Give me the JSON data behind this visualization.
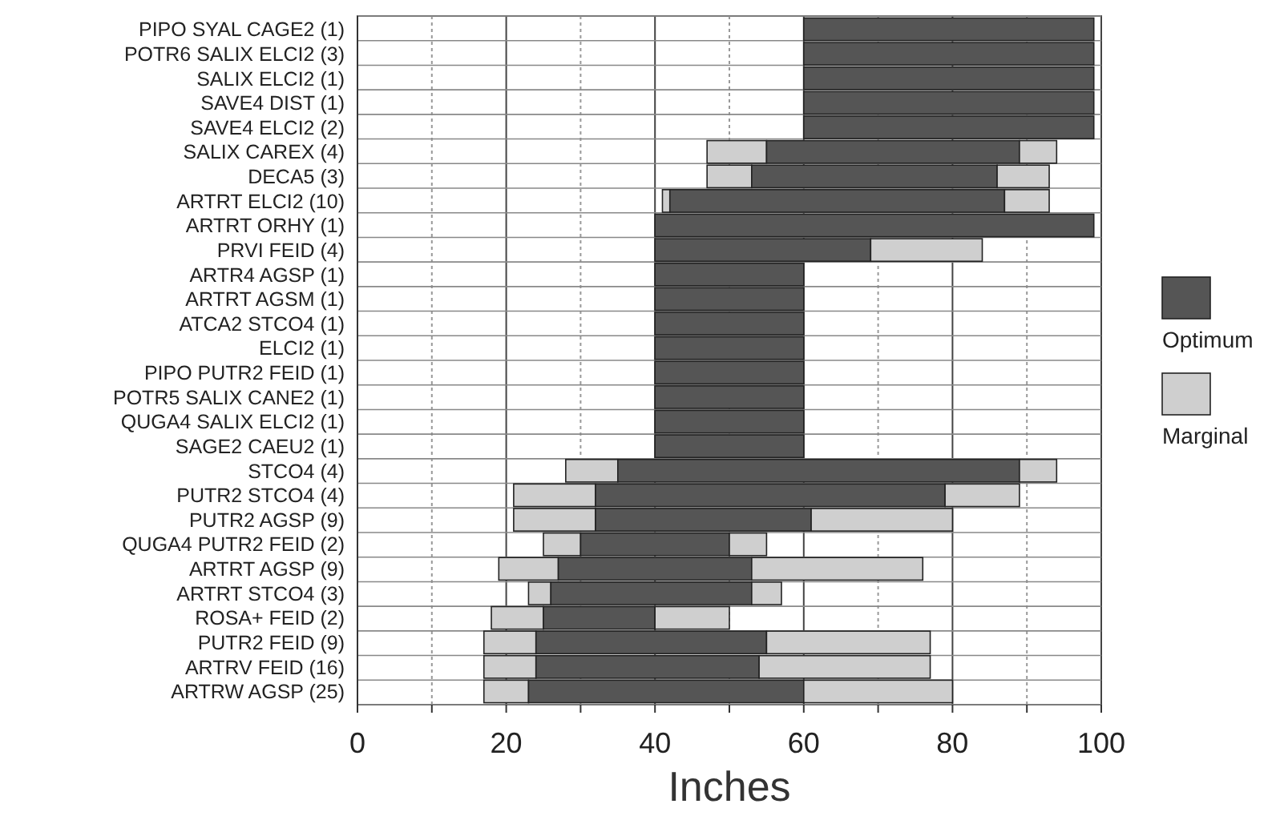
{
  "chart_data": {
    "type": "bar",
    "orientation": "horizontal",
    "xlabel": "Inches",
    "categories": [
      "PIPO SYAL CAGE2 (1)",
      "POTR6 SALIX ELCI2 (3)",
      "SALIX ELCI2 (1)",
      "SAVE4 DIST (1)",
      "SAVE4 ELCI2 (2)",
      "SALIX CAREX (4)",
      "DECA5 (3)",
      "ARTRT ELCI2 (10)",
      "ARTRT ORHY (1)",
      "PRVI FEID (4)",
      "ARTR4 AGSP (1)",
      "ARTRT AGSM (1)",
      "ATCA2 STCO4 (1)",
      "ELCI2 (1)",
      "PIPO PUTR2 FEID (1)",
      "POTR5 SALIX CANE2 (1)",
      "QUGA4 SALIX ELCI2 (1)",
      "SAGE2 CAEU2 (1)",
      "STCO4 (4)",
      "PUTR2 STCO4 (4)",
      "PUTR2 AGSP (9)",
      "QUGA4 PUTR2 FEID (2)",
      "ARTRT AGSP (9)",
      "ARTRT STCO4 (3)",
      "ROSA+ FEID (2)",
      "PUTR2 FEID (9)",
      "ARTRV FEID (16)",
      "ARTRW AGSP (25)"
    ],
    "series": [
      {
        "name": "Marginal",
        "color": "#cfcfcf",
        "base": [
          null,
          null,
          null,
          null,
          null,
          47,
          47,
          41,
          null,
          null,
          null,
          null,
          null,
          null,
          null,
          null,
          null,
          null,
          28,
          21,
          21,
          25,
          19,
          23,
          18,
          17,
          17,
          17
        ],
        "values": [
          null,
          null,
          null,
          null,
          null,
          8,
          6,
          1,
          null,
          null,
          null,
          null,
          null,
          null,
          null,
          null,
          null,
          null,
          7,
          11,
          11,
          5,
          8,
          3,
          7,
          7,
          7,
          6
        ]
      },
      {
        "name": "Optimum",
        "color": "#555555",
        "base": [
          60,
          60,
          60,
          60,
          60,
          55,
          53,
          42,
          40,
          40,
          40,
          40,
          40,
          40,
          40,
          40,
          40,
          40,
          35,
          32,
          32,
          30,
          27,
          26,
          25,
          24,
          24,
          23
        ],
        "values": [
          39,
          39,
          39,
          39,
          39,
          34,
          33,
          45,
          59,
          29,
          20,
          20,
          20,
          20,
          20,
          20,
          20,
          20,
          54,
          47,
          29,
          20,
          26,
          27,
          15,
          31,
          30,
          37
        ]
      },
      {
        "color": "#cfcfcf",
        "base": [
          null,
          null,
          null,
          null,
          null,
          89,
          86,
          87,
          null,
          69,
          null,
          null,
          null,
          null,
          null,
          null,
          null,
          null,
          89,
          79,
          61,
          50,
          53,
          53,
          40,
          55,
          54,
          60
        ],
        "values": [
          null,
          null,
          null,
          null,
          null,
          5,
          7,
          6,
          null,
          15,
          null,
          null,
          null,
          null,
          null,
          null,
          null,
          null,
          5,
          10,
          19,
          5,
          23,
          4,
          10,
          22,
          23,
          20
        ]
      }
    ],
    "xlim": [
      0,
      100
    ],
    "xticks": [
      0,
      {
        "value": 10,
        "label": null
      },
      20,
      {
        "value": 30,
        "label": null
      },
      40,
      {
        "value": 50,
        "label": null
      },
      60,
      {
        "value": 70,
        "label": null
      },
      80,
      {
        "value": 90,
        "label": null
      },
      100
    ],
    "grid": true,
    "legend": "right"
  }
}
